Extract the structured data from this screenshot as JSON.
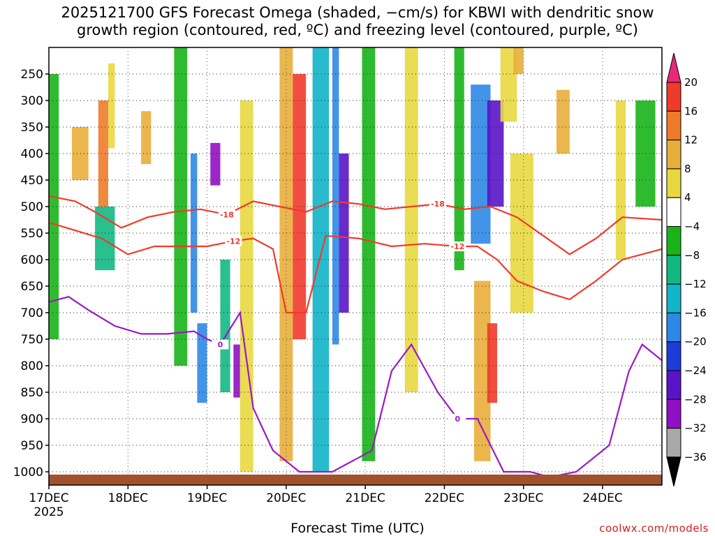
{
  "title": {
    "line1": "2025121700 GFS Forecast Omega (shaded, −cm/s) for KBWI with dendritic snow",
    "line2": "growth region (contoured, red, ºC) and freezing level (contoured, purple, ºC)"
  },
  "watermark": "coolwx.com/models",
  "chart_data": {
    "type": "time-height contour",
    "title": "2025121700 GFS Forecast Omega (shaded, −cm/s) for KBWI with dendritic snow growth region (contoured, red, ºC) and freezing level (contoured, purple, ºC)",
    "xlabel": "Forecast Time (UTC)",
    "ylabel": "",
    "x_ticks": [
      "17DEC",
      "18DEC",
      "19DEC",
      "20DEC",
      "21DEC",
      "22DEC",
      "23DEC",
      "24DEC"
    ],
    "x_year_label": "2025",
    "x_range_hours": [
      0,
      186
    ],
    "y_ticks": [
      250,
      300,
      350,
      400,
      450,
      500,
      550,
      600,
      650,
      700,
      750,
      800,
      850,
      900,
      950,
      1000
    ],
    "y_range_hpa": [
      200,
      1025
    ],
    "colorbar": {
      "labels": [
        "20",
        "16",
        "12",
        "8",
        "4",
        "−4",
        "−8",
        "−12",
        "−16",
        "−20",
        "−24",
        "−28",
        "−32",
        "−36"
      ],
      "colors": [
        "#e8287a",
        "#ef3b2c",
        "#ef7b2a",
        "#e8ae3a",
        "#e8d840",
        "#ffffff",
        "#18b418",
        "#12b882",
        "#11b4c8",
        "#2d88e6",
        "#1e3cd8",
        "#5a14c8",
        "#9010c4",
        "#a8a8a8",
        "#000000"
      ]
    },
    "shading_cells": [
      {
        "t": 0,
        "p": 250,
        "w": 3,
        "h": 500,
        "v": -6
      },
      {
        "t": 7,
        "p": 350,
        "w": 5,
        "h": 100,
        "v": 9
      },
      {
        "t": 15,
        "p": 300,
        "w": 3,
        "h": 200,
        "v": 13
      },
      {
        "t": 18,
        "p": 230,
        "w": 2,
        "h": 160,
        "v": 6
      },
      {
        "t": 14,
        "p": 500,
        "w": 6,
        "h": 120,
        "v": -12
      },
      {
        "t": 28,
        "p": 320,
        "w": 3,
        "h": 100,
        "v": 9
      },
      {
        "t": 38,
        "p": 200,
        "w": 4,
        "h": 600,
        "v": -6
      },
      {
        "t": 43,
        "p": 400,
        "w": 2,
        "h": 300,
        "v": -17
      },
      {
        "t": 45,
        "p": 720,
        "w": 3,
        "h": 150,
        "v": -20
      },
      {
        "t": 49,
        "p": 380,
        "w": 3,
        "h": 80,
        "v": -29
      },
      {
        "t": 52,
        "p": 600,
        "w": 3,
        "h": 250,
        "v": -12
      },
      {
        "t": 56,
        "p": 760,
        "w": 2,
        "h": 100,
        "v": -29
      },
      {
        "t": 58,
        "p": 300,
        "w": 4,
        "h": 700,
        "v": 5
      },
      {
        "t": 70,
        "p": 200,
        "w": 4,
        "h": 780,
        "v": 10
      },
      {
        "t": 74,
        "p": 250,
        "w": 4,
        "h": 500,
        "v": 17
      },
      {
        "t": 80,
        "p": 200,
        "w": 5,
        "h": 800,
        "v": -13
      },
      {
        "t": 86,
        "p": 200,
        "w": 2,
        "h": 560,
        "v": -17
      },
      {
        "t": 88,
        "p": 400,
        "w": 3,
        "h": 300,
        "v": -25
      },
      {
        "t": 95,
        "p": 200,
        "w": 4,
        "h": 780,
        "v": -7
      },
      {
        "t": 108,
        "p": 200,
        "w": 4,
        "h": 650,
        "v": 5
      },
      {
        "t": 123,
        "p": 200,
        "w": 3,
        "h": 420,
        "v": -7
      },
      {
        "t": 128,
        "p": 270,
        "w": 6,
        "h": 300,
        "v": -17
      },
      {
        "t": 133,
        "p": 300,
        "w": 5,
        "h": 200,
        "v": -25
      },
      {
        "t": 129,
        "p": 640,
        "w": 5,
        "h": 340,
        "v": 9
      },
      {
        "t": 133,
        "p": 720,
        "w": 3,
        "h": 150,
        "v": 17
      },
      {
        "t": 137,
        "p": 200,
        "w": 5,
        "h": 140,
        "v": 6
      },
      {
        "t": 141,
        "p": 200,
        "w": 3,
        "h": 50,
        "v": 10
      },
      {
        "t": 140,
        "p": 400,
        "w": 7,
        "h": 300,
        "v": 5
      },
      {
        "t": 154,
        "p": 280,
        "w": 4,
        "h": 120,
        "v": 9
      },
      {
        "t": 172,
        "p": 300,
        "w": 3,
        "h": 300,
        "v": 5
      },
      {
        "t": 178,
        "p": 300,
        "w": 6,
        "h": 200,
        "v": -8
      }
    ],
    "contours": [
      {
        "label": "-18",
        "color": "#ef3b2c",
        "t": [
          0,
          8,
          14,
          22,
          30,
          38,
          46,
          54,
          62,
          70,
          78,
          86,
          94,
          102,
          110,
          118,
          126,
          134,
          142,
          150,
          158,
          166,
          174,
          186
        ],
        "p": [
          480,
          490,
          510,
          540,
          520,
          510,
          505,
          515,
          490,
          500,
          510,
          490,
          495,
          505,
          500,
          495,
          505,
          500,
          520,
          555,
          590,
          560,
          520,
          525
        ]
      },
      {
        "label": "-12",
        "color": "#ef3b2c",
        "t": [
          0,
          8,
          16,
          24,
          32,
          40,
          48,
          56,
          62,
          68,
          72,
          78,
          84,
          94,
          104,
          114,
          124,
          130,
          136,
          142,
          150,
          158,
          166,
          174,
          186
        ],
        "p": [
          530,
          545,
          560,
          590,
          575,
          575,
          575,
          565,
          560,
          580,
          700,
          700,
          555,
          560,
          575,
          570,
          575,
          575,
          600,
          640,
          660,
          675,
          640,
          600,
          580
        ]
      },
      {
        "label": "0",
        "color": "#9a1ac4",
        "t": [
          0,
          6,
          12,
          20,
          28,
          36,
          44,
          48,
          52,
          58,
          62,
          68,
          76,
          86,
          98,
          104,
          110,
          118,
          124,
          130,
          138,
          146,
          152,
          160,
          170,
          176,
          180,
          186
        ],
        "p": [
          680,
          670,
          695,
          725,
          740,
          740,
          735,
          750,
          760,
          700,
          880,
          960,
          1000,
          1000,
          960,
          810,
          760,
          850,
          900,
          900,
          1000,
          1000,
          1010,
          1000,
          950,
          810,
          760,
          790
        ]
      }
    ]
  }
}
